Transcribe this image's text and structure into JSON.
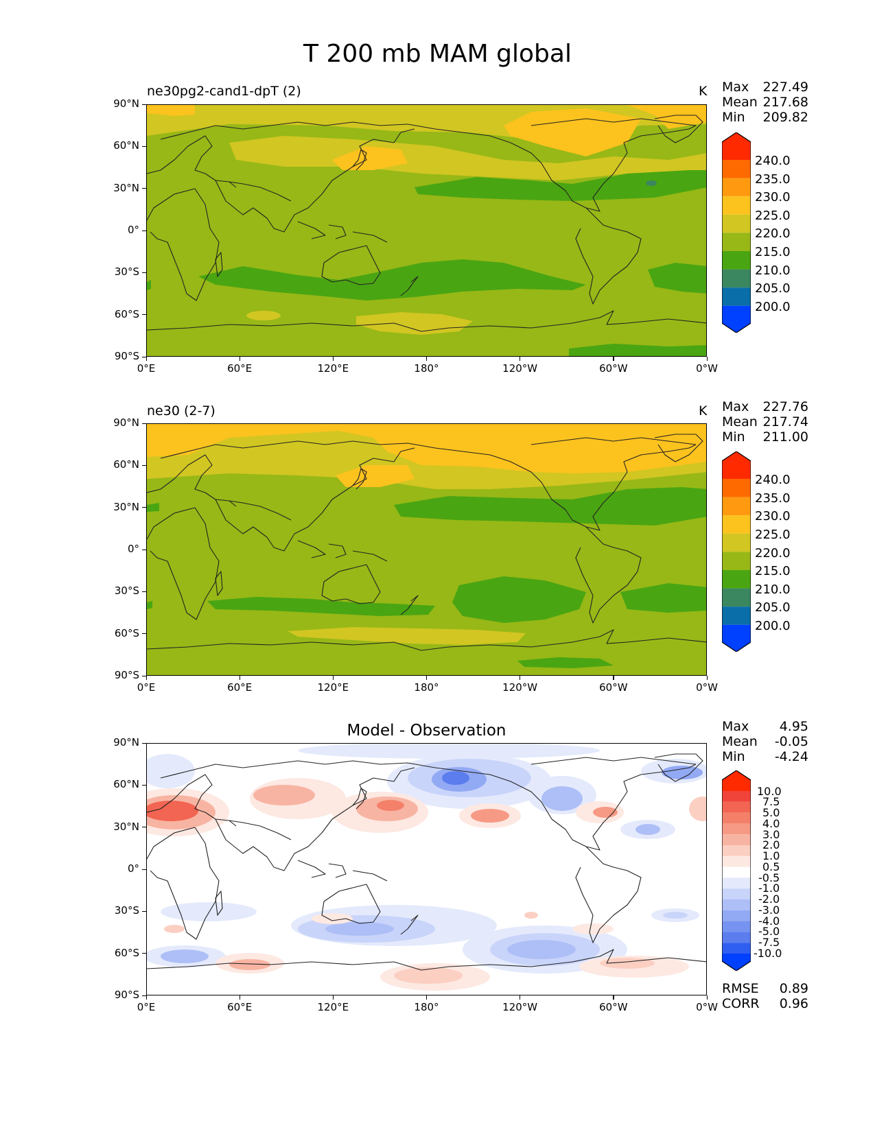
{
  "title": "T 200 mb MAM global",
  "axes": {
    "lat_ticks": [
      "90°N",
      "60°N",
      "30°N",
      "0°",
      "30°S",
      "60°S",
      "90°S"
    ],
    "lon_ticks": [
      "0°E",
      "60°E",
      "120°E",
      "180°",
      "120°W",
      "60°W",
      "0°W"
    ]
  },
  "panels": [
    {
      "name": "ne30pg2-cand1-dpT (2)",
      "units": "K",
      "stats": {
        "max_label": "Max",
        "max": "227.49",
        "mean_label": "Mean",
        "mean": "217.68",
        "min_label": "Min",
        "min": "209.82"
      },
      "colorbar": {
        "labels": [
          "240.0",
          "235.0",
          "230.0",
          "225.0",
          "220.0",
          "215.0",
          "210.0",
          "205.0",
          "200.0"
        ],
        "colors": [
          "#ff2a00",
          "#ff6a00",
          "#ff9a10",
          "#fcc21e",
          "#d2c622",
          "#97b817",
          "#4aa512",
          "#3a8760",
          "#0a6ea8",
          "#0040ff"
        ]
      }
    },
    {
      "name": "ne30 (2-7)",
      "units": "K",
      "stats": {
        "max_label": "Max",
        "max": "227.76",
        "mean_label": "Mean",
        "mean": "217.74",
        "min_label": "Min",
        "min": "211.00"
      },
      "colorbar": {
        "labels": [
          "240.0",
          "235.0",
          "230.0",
          "225.0",
          "220.0",
          "215.0",
          "210.0",
          "205.0",
          "200.0"
        ],
        "colors": [
          "#ff2a00",
          "#ff6a00",
          "#ff9a10",
          "#fcc21e",
          "#d2c622",
          "#97b817",
          "#4aa512",
          "#3a8760",
          "#0a6ea8",
          "#0040ff"
        ]
      }
    },
    {
      "name": "Model - Observation",
      "units": "",
      "stats": {
        "max_label": "Max",
        "max": "4.95",
        "mean_label": "Mean",
        "mean": "-0.05",
        "min_label": "Min",
        "min": "-4.24"
      },
      "extra": {
        "rmse_label": "RMSE",
        "rmse": "0.89",
        "corr_label": "CORR",
        "corr": "0.96"
      },
      "colorbar": {
        "labels": [
          "10.0",
          "7.5",
          "5.0",
          "4.0",
          "3.0",
          "2.0",
          "1.0",
          "0.5",
          "-0.5",
          "-1.0",
          "-2.0",
          "-3.0",
          "-4.0",
          "-5.0",
          "-7.5",
          "-10.0"
        ],
        "colors": [
          "#ff2a00",
          "#f0443a",
          "#f26552",
          "#f4806a",
          "#f69a85",
          "#f8b4a2",
          "#fbcfc2",
          "#fde8e2",
          "#ffffff",
          "#e4eafc",
          "#c9d4fa",
          "#aebff7",
          "#92a9f4",
          "#7793f1",
          "#5b7dee",
          "#2f5ff0",
          "#0040ff"
        ]
      }
    }
  ]
}
